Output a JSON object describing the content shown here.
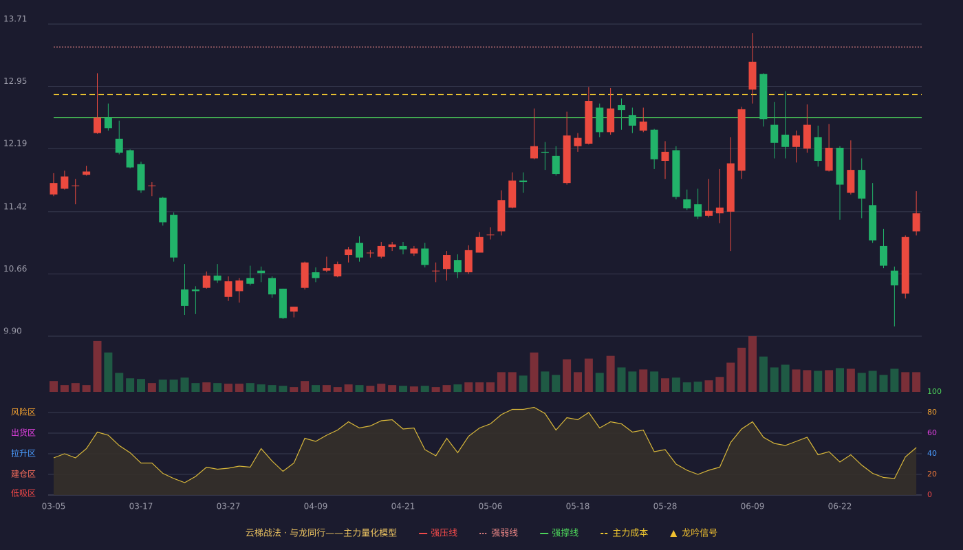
{
  "chart_data": {
    "type": "candlestick",
    "categories": [
      "03-05",
      null,
      null,
      null,
      null,
      null,
      null,
      null,
      "03-17",
      null,
      null,
      null,
      null,
      null,
      null,
      null,
      "03-27",
      null,
      null,
      null,
      null,
      null,
      null,
      null,
      "04-09",
      null,
      null,
      null,
      null,
      null,
      null,
      null,
      "04-21",
      null,
      null,
      null,
      null,
      null,
      null,
      null,
      "05-06",
      null,
      null,
      null,
      null,
      null,
      null,
      null,
      "05-18",
      null,
      null,
      null,
      null,
      null,
      null,
      null,
      "05-28",
      null,
      null,
      null,
      null,
      null,
      null,
      null,
      "06-09",
      null,
      null,
      null,
      null,
      null,
      null,
      null,
      "06-22",
      null,
      null,
      null,
      null,
      null,
      null,
      null
    ],
    "open": [
      11.63,
      11.7,
      11.74,
      11.87,
      12.38,
      12.57,
      12.31,
      12.17,
      12.0,
      11.74,
      11.59,
      11.38,
      10.47,
      10.47,
      10.49,
      10.64,
      10.38,
      10.45,
      10.61,
      10.7,
      10.61,
      10.48,
      10.2,
      10.49,
      10.68,
      10.7,
      10.63,
      10.89,
      11.04,
      10.92,
      10.87,
      10.99,
      11.0,
      10.91,
      10.97,
      10.7,
      10.72,
      10.83,
      10.68,
      10.92,
      11.14,
      11.18,
      11.47,
      11.8,
      12.07,
      12.15,
      12.1,
      11.77,
      12.22,
      12.25,
      12.69,
      12.39,
      12.72,
      12.6,
      12.41,
      12.42,
      12.04,
      12.17,
      11.57,
      11.51,
      11.37,
      11.4,
      11.42,
      11.92,
      12.91,
      13.1,
      12.48,
      12.36,
      12.21,
      12.19,
      12.33,
      11.92,
      12.2,
      11.65,
      11.93,
      11.5,
      11.0,
      10.7,
      10.42,
      11.18
    ],
    "high": [
      11.89,
      11.92,
      11.82,
      11.98,
      13.11,
      12.74,
      12.53,
      12.18,
      12.03,
      11.78,
      11.6,
      11.41,
      10.78,
      10.51,
      10.69,
      10.78,
      10.63,
      10.61,
      10.76,
      10.75,
      10.63,
      10.48,
      10.26,
      10.81,
      10.74,
      10.87,
      10.81,
      10.99,
      11.12,
      10.95,
      11.05,
      11.05,
      11.05,
      11.0,
      11.04,
      10.8,
      10.94,
      10.9,
      11.01,
      11.17,
      11.23,
      11.68,
      11.9,
      11.9,
      12.68,
      12.27,
      12.22,
      12.64,
      12.38,
      12.94,
      12.74,
      12.93,
      12.8,
      12.69,
      12.69,
      12.43,
      12.28,
      12.22,
      11.69,
      11.7,
      11.82,
      11.94,
      12.33,
      12.7,
      13.6,
      13.11,
      12.76,
      12.89,
      12.41,
      12.73,
      12.47,
      12.49,
      12.22,
      12.29,
      12.07,
      11.77,
      11.21,
      10.75,
      11.13,
      11.67
    ],
    "low": [
      11.61,
      11.69,
      11.51,
      11.86,
      12.37,
      12.41,
      12.12,
      11.95,
      11.65,
      11.61,
      11.25,
      10.81,
      10.16,
      10.17,
      10.48,
      10.55,
      10.33,
      10.31,
      10.52,
      10.56,
      10.37,
      10.11,
      10.13,
      10.47,
      10.56,
      10.68,
      10.62,
      10.8,
      10.81,
      10.86,
      10.85,
      10.94,
      10.9,
      10.88,
      10.74,
      10.56,
      10.58,
      10.61,
      10.66,
      10.92,
      11.08,
      11.13,
      11.46,
      11.65,
      12.06,
      11.93,
      11.86,
      11.75,
      12.15,
      12.24,
      12.33,
      12.36,
      12.42,
      12.38,
      12.39,
      11.94,
      11.82,
      11.57,
      11.44,
      11.33,
      11.35,
      11.28,
      10.94,
      11.82,
      12.74,
      12.46,
      12.07,
      12.07,
      12.02,
      12.14,
      11.97,
      11.91,
      11.32,
      11.63,
      11.34,
      11.04,
      10.73,
      10.02,
      10.36,
      11.13
    ],
    "close": [
      11.77,
      11.85,
      11.74,
      11.91,
      12.57,
      12.44,
      12.14,
      11.96,
      11.68,
      11.74,
      11.29,
      10.86,
      10.27,
      10.45,
      10.64,
      10.58,
      10.57,
      10.58,
      10.54,
      10.67,
      10.41,
      10.12,
      10.26,
      10.8,
      10.61,
      10.73,
      10.78,
      10.96,
      10.86,
      10.92,
      11.0,
      11.02,
      10.96,
      10.97,
      10.77,
      10.7,
      10.89,
      10.68,
      10.95,
      11.11,
      11.14,
      11.56,
      11.8,
      11.78,
      12.22,
      12.14,
      11.88,
      12.35,
      12.32,
      12.77,
      12.39,
      12.68,
      12.66,
      12.47,
      12.52,
      12.06,
      12.15,
      11.6,
      11.46,
      11.36,
      11.43,
      11.47,
      12.01,
      12.67,
      13.25,
      12.55,
      12.26,
      12.21,
      12.35,
      12.48,
      12.04,
      12.2,
      11.75,
      11.93,
      11.58,
      11.07,
      10.76,
      10.52,
      11.11,
      11.4
    ],
    "up_color": "#eb4a3f",
    "down_color": "#22b36a",
    "ylim": [
      9.9,
      13.71
    ],
    "yticks": [
      {
        "value": 9.9,
        "label": "9.90"
      },
      10.66,
      11.42,
      12.19,
      12.95,
      13.71
    ],
    "grid": true,
    "overlays": [
      {
        "name": "强压线",
        "color": "#f04a4a",
        "style": "solid"
      },
      {
        "name": "强弱线",
        "color": "#e88585",
        "style": "dotted",
        "value": 13.43
      },
      {
        "name": "强撑线",
        "color": "#4cd35a",
        "style": "solid",
        "value": 12.57
      },
      {
        "name": "主力成本",
        "color": "#f0c830",
        "style": "dashed",
        "value": 12.85
      },
      {
        "name": "龙吟信号",
        "color": "#f0c030",
        "style": "triangle"
      }
    ],
    "legend_title": "云梯战法 · 与龙同行——主力量化模型",
    "volume": [
      16,
      10,
      13,
      10,
      75,
      58,
      28,
      20,
      19,
      13,
      18,
      18,
      21,
      13,
      14,
      13,
      12,
      12,
      13,
      11,
      10,
      9,
      7,
      16,
      10,
      10,
      7,
      11,
      10,
      9,
      12,
      10,
      9,
      8,
      9,
      7,
      10,
      11,
      14,
      14,
      14,
      29,
      29,
      24,
      58,
      30,
      25,
      48,
      29,
      49,
      28,
      53,
      36,
      30,
      33,
      30,
      20,
      21,
      14,
      15,
      17,
      22,
      43,
      65,
      82,
      52,
      36,
      40,
      33,
      32,
      31,
      32,
      35,
      34,
      28,
      31,
      25,
      34,
      29,
      29
    ],
    "oscillator": {
      "type": "area",
      "color": "#d9b83a",
      "fill": "#35302a",
      "values": [
        36,
        40,
        36,
        45,
        61,
        58,
        48,
        41,
        31,
        31,
        21,
        16,
        12,
        18,
        27,
        25,
        26,
        28,
        27,
        45,
        33,
        23,
        31,
        55,
        52,
        58,
        63,
        71,
        65,
        67,
        72,
        73,
        64,
        65,
        44,
        38,
        55,
        41,
        57,
        65,
        69,
        78,
        83,
        83,
        85,
        79,
        63,
        75,
        73,
        80,
        65,
        71,
        69,
        61,
        63,
        42,
        44,
        30,
        24,
        20,
        24,
        27,
        51,
        64,
        71,
        56,
        50,
        48,
        52,
        56,
        39,
        42,
        32,
        39,
        29,
        21,
        17,
        16,
        37,
        46
      ],
      "y2lim": [
        0,
        100
      ],
      "y2ticks": [
        0,
        20,
        40,
        60,
        80,
        100
      ],
      "y2tick_colors": [
        "#f04848",
        "#f07a3a",
        "#4a9cff",
        "#e040e0",
        "#f0a030",
        "#4cd35a"
      ],
      "zones": [
        {
          "label": "低吸区",
          "color": "#f04848"
        },
        {
          "label": "建仓区",
          "color": "#f06a5a"
        },
        {
          "label": "拉升区",
          "color": "#4a9cff"
        },
        {
          "label": "出货区",
          "color": "#e040e0"
        },
        {
          "label": "风险区",
          "color": "#f0a030"
        }
      ]
    }
  }
}
